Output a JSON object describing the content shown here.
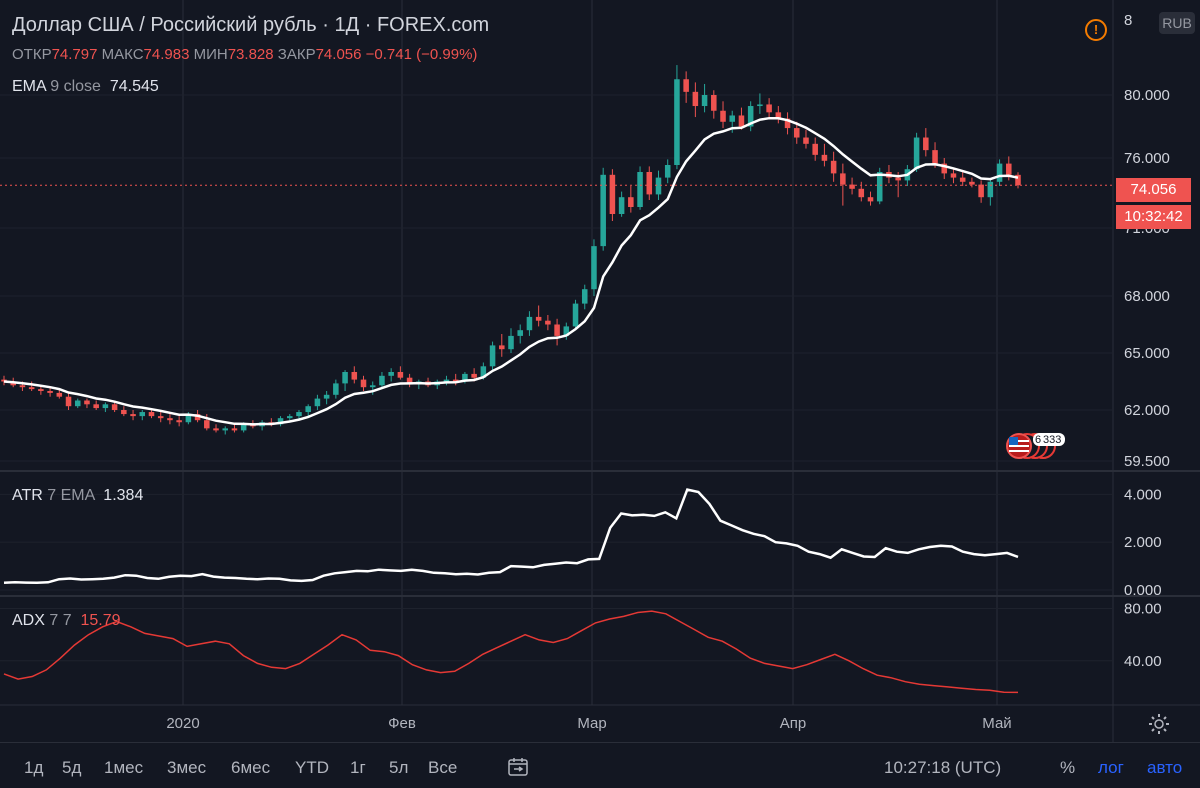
{
  "header": {
    "title": "Доллар США / Российский рубль · 1Д · FOREX.com",
    "ohlc": [
      {
        "key": "ОТКР",
        "value": "74.797"
      },
      {
        "key": "МАКС",
        "value": "74.983"
      },
      {
        "key": "МИН",
        "value": "73.828"
      },
      {
        "key": "ЗАКР",
        "value": "74.056"
      },
      {
        "key": "",
        "value": "−0.741 (−0.99%)"
      }
    ],
    "currency_button": "RUB",
    "alert_icon": "!"
  },
  "indicators": {
    "ema": {
      "name": "EMA",
      "params": "9 close",
      "value": "74.545"
    },
    "atr": {
      "name": "ATR",
      "params": "7 EMA",
      "value": "1.384"
    },
    "adx": {
      "name": "ADX",
      "params": "7 7",
      "value": "15.79"
    }
  },
  "price_axis": {
    "labels": [
      "80.000",
      "76.000",
      "71.000",
      "68.000",
      "65.000",
      "62.000",
      "59.500",
      "8"
    ],
    "current_price": "74.056",
    "countdown": "10:32:42"
  },
  "atr_axis": {
    "labels": [
      "4.000",
      "2.000",
      "0.000"
    ]
  },
  "adx_axis": {
    "labels": [
      "80.00",
      "40.00"
    ]
  },
  "time_axis": {
    "labels": [
      "2020",
      "Фев",
      "Мар",
      "Апр",
      "Май"
    ]
  },
  "events_badge": {
    "label": "6",
    "icon": "us-flag-icon",
    "extra": "333"
  },
  "bottom_bar": {
    "timeframes": [
      "1д",
      "5д",
      "1мес",
      "3мес",
      "6мес",
      "YTD",
      "1г",
      "5л",
      "Все"
    ],
    "clock": "10:27:18 (UTC)",
    "percent": "%",
    "log": "лог",
    "auto": "авто"
  },
  "colors": {
    "background": "#131722",
    "up": "#26a69a",
    "down": "#ef5350",
    "ema": "#ffffff",
    "atr": "#ffffff",
    "adx": "#e53935",
    "grid": "#2a2e39",
    "accent": "#2962ff"
  },
  "chart_data": [
    {
      "type": "candlestick",
      "title": "Доллар США / Российский рубль · 1Д · FOREX.com",
      "y_axis_labels": [
        80.0,
        76.0,
        71.0,
        68.0,
        65.0,
        62.0,
        59.5
      ],
      "ylim": [
        59.5,
        84.0
      ],
      "x_axis_labels": [
        "2020",
        "Фев",
        "Мар",
        "Апр",
        "Май"
      ],
      "candles": [
        {
          "o": 63.6,
          "h": 63.8,
          "l": 63.3,
          "c": 63.5
        },
        {
          "o": 63.5,
          "h": 63.7,
          "l": 63.2,
          "c": 63.3
        },
        {
          "o": 63.3,
          "h": 63.5,
          "l": 63.0,
          "c": 63.2
        },
        {
          "o": 63.2,
          "h": 63.5,
          "l": 63.0,
          "c": 63.1
        },
        {
          "o": 63.1,
          "h": 63.3,
          "l": 62.8,
          "c": 63.0
        },
        {
          "o": 63.0,
          "h": 63.2,
          "l": 62.7,
          "c": 62.9
        },
        {
          "o": 62.9,
          "h": 63.1,
          "l": 62.6,
          "c": 62.7
        },
        {
          "o": 62.7,
          "h": 62.9,
          "l": 62.0,
          "c": 62.2
        },
        {
          "o": 62.2,
          "h": 62.6,
          "l": 62.1,
          "c": 62.5
        },
        {
          "o": 62.5,
          "h": 62.6,
          "l": 62.1,
          "c": 62.3
        },
        {
          "o": 62.3,
          "h": 62.5,
          "l": 62.0,
          "c": 62.1
        },
        {
          "o": 62.1,
          "h": 62.4,
          "l": 61.9,
          "c": 62.3
        },
        {
          "o": 62.3,
          "h": 62.5,
          "l": 61.9,
          "c": 62.0
        },
        {
          "o": 62.0,
          "h": 62.2,
          "l": 61.7,
          "c": 61.8
        },
        {
          "o": 61.8,
          "h": 62.0,
          "l": 61.5,
          "c": 61.7
        },
        {
          "o": 61.7,
          "h": 62.0,
          "l": 61.5,
          "c": 61.9
        },
        {
          "o": 61.9,
          "h": 62.1,
          "l": 61.6,
          "c": 61.7
        },
        {
          "o": 61.7,
          "h": 61.9,
          "l": 61.4,
          "c": 61.6
        },
        {
          "o": 61.6,
          "h": 61.8,
          "l": 61.3,
          "c": 61.5
        },
        {
          "o": 61.5,
          "h": 61.7,
          "l": 61.2,
          "c": 61.4
        },
        {
          "o": 61.4,
          "h": 61.9,
          "l": 61.3,
          "c": 61.8
        },
        {
          "o": 61.8,
          "h": 62.0,
          "l": 61.4,
          "c": 61.5
        },
        {
          "o": 61.5,
          "h": 61.8,
          "l": 61.0,
          "c": 61.1
        },
        {
          "o": 61.1,
          "h": 61.3,
          "l": 60.9,
          "c": 61.0
        },
        {
          "o": 61.0,
          "h": 61.2,
          "l": 60.8,
          "c": 61.1
        },
        {
          "o": 61.1,
          "h": 61.3,
          "l": 60.9,
          "c": 61.0
        },
        {
          "o": 61.0,
          "h": 61.4,
          "l": 60.9,
          "c": 61.3
        },
        {
          "o": 61.3,
          "h": 61.5,
          "l": 61.1,
          "c": 61.2
        },
        {
          "o": 61.2,
          "h": 61.5,
          "l": 61.0,
          "c": 61.4
        },
        {
          "o": 61.4,
          "h": 61.6,
          "l": 61.2,
          "c": 61.3
        },
        {
          "o": 61.3,
          "h": 61.7,
          "l": 61.2,
          "c": 61.6
        },
        {
          "o": 61.6,
          "h": 61.8,
          "l": 61.4,
          "c": 61.7
        },
        {
          "o": 61.7,
          "h": 62.0,
          "l": 61.5,
          "c": 61.9
        },
        {
          "o": 61.9,
          "h": 62.3,
          "l": 61.7,
          "c": 62.2
        },
        {
          "o": 62.2,
          "h": 62.8,
          "l": 62.0,
          "c": 62.6
        },
        {
          "o": 62.6,
          "h": 63.0,
          "l": 62.3,
          "c": 62.8
        },
        {
          "o": 62.8,
          "h": 63.6,
          "l": 62.6,
          "c": 63.4
        },
        {
          "o": 63.4,
          "h": 64.1,
          "l": 63.0,
          "c": 64.0
        },
        {
          "o": 64.0,
          "h": 64.3,
          "l": 63.4,
          "c": 63.6
        },
        {
          "o": 63.6,
          "h": 63.8,
          "l": 63.0,
          "c": 63.2
        },
        {
          "o": 63.2,
          "h": 63.5,
          "l": 62.8,
          "c": 63.3
        },
        {
          "o": 63.3,
          "h": 64.0,
          "l": 63.1,
          "c": 63.8
        },
        {
          "o": 63.8,
          "h": 64.2,
          "l": 63.5,
          "c": 64.0
        },
        {
          "o": 64.0,
          "h": 64.3,
          "l": 63.6,
          "c": 63.7
        },
        {
          "o": 63.7,
          "h": 63.9,
          "l": 63.2,
          "c": 63.4
        },
        {
          "o": 63.4,
          "h": 63.6,
          "l": 63.1,
          "c": 63.5
        },
        {
          "o": 63.5,
          "h": 63.7,
          "l": 63.2,
          "c": 63.3
        },
        {
          "o": 63.3,
          "h": 63.6,
          "l": 63.1,
          "c": 63.5
        },
        {
          "o": 63.5,
          "h": 63.8,
          "l": 63.3,
          "c": 63.6
        },
        {
          "o": 63.6,
          "h": 63.9,
          "l": 63.3,
          "c": 63.5
        },
        {
          "o": 63.5,
          "h": 64.0,
          "l": 63.4,
          "c": 63.9
        },
        {
          "o": 63.9,
          "h": 64.2,
          "l": 63.5,
          "c": 63.7
        },
        {
          "o": 63.7,
          "h": 64.5,
          "l": 63.6,
          "c": 64.3
        },
        {
          "o": 64.3,
          "h": 65.6,
          "l": 64.1,
          "c": 65.4
        },
        {
          "o": 65.4,
          "h": 66.0,
          "l": 64.8,
          "c": 65.2
        },
        {
          "o": 65.2,
          "h": 66.3,
          "l": 65.0,
          "c": 65.9
        },
        {
          "o": 65.9,
          "h": 66.5,
          "l": 65.5,
          "c": 66.2
        },
        {
          "o": 66.2,
          "h": 67.2,
          "l": 65.9,
          "c": 66.9
        },
        {
          "o": 66.9,
          "h": 67.5,
          "l": 66.4,
          "c": 66.7
        },
        {
          "o": 66.7,
          "h": 67.0,
          "l": 66.2,
          "c": 66.5
        },
        {
          "o": 66.5,
          "h": 66.8,
          "l": 65.4,
          "c": 65.9
        },
        {
          "o": 65.9,
          "h": 66.6,
          "l": 65.7,
          "c": 66.4
        },
        {
          "o": 66.4,
          "h": 67.8,
          "l": 66.2,
          "c": 67.6
        },
        {
          "o": 67.6,
          "h": 68.5,
          "l": 67.3,
          "c": 68.3
        },
        {
          "o": 68.3,
          "h": 70.5,
          "l": 68.0,
          "c": 70.2
        },
        {
          "o": 70.2,
          "h": 75.3,
          "l": 70.0,
          "c": 74.8
        },
        {
          "o": 74.8,
          "h": 75.2,
          "l": 71.5,
          "c": 72.0
        },
        {
          "o": 72.0,
          "h": 73.6,
          "l": 71.8,
          "c": 73.2
        },
        {
          "o": 73.2,
          "h": 74.0,
          "l": 72.1,
          "c": 72.5
        },
        {
          "o": 72.5,
          "h": 75.4,
          "l": 72.3,
          "c": 75.0
        },
        {
          "o": 75.0,
          "h": 75.4,
          "l": 73.0,
          "c": 73.4
        },
        {
          "o": 73.4,
          "h": 75.1,
          "l": 73.0,
          "c": 74.6
        },
        {
          "o": 74.6,
          "h": 75.9,
          "l": 74.2,
          "c": 75.5
        },
        {
          "o": 75.5,
          "h": 81.9,
          "l": 75.2,
          "c": 81.0
        },
        {
          "o": 81.0,
          "h": 81.5,
          "l": 79.5,
          "c": 80.2
        },
        {
          "o": 80.2,
          "h": 80.8,
          "l": 78.6,
          "c": 79.3
        },
        {
          "o": 79.3,
          "h": 80.7,
          "l": 78.9,
          "c": 80.0
        },
        {
          "o": 80.0,
          "h": 80.3,
          "l": 78.5,
          "c": 79.0
        },
        {
          "o": 79.0,
          "h": 79.6,
          "l": 77.9,
          "c": 78.3
        },
        {
          "o": 78.3,
          "h": 79.0,
          "l": 77.6,
          "c": 78.7
        },
        {
          "o": 78.7,
          "h": 79.2,
          "l": 77.8,
          "c": 78.0
        },
        {
          "o": 78.0,
          "h": 79.6,
          "l": 77.7,
          "c": 79.3
        },
        {
          "o": 79.3,
          "h": 80.1,
          "l": 78.8,
          "c": 79.4
        },
        {
          "o": 79.4,
          "h": 79.8,
          "l": 78.6,
          "c": 78.9
        },
        {
          "o": 78.9,
          "h": 79.3,
          "l": 78.2,
          "c": 78.5
        },
        {
          "o": 78.5,
          "h": 78.9,
          "l": 77.5,
          "c": 77.9
        },
        {
          "o": 77.9,
          "h": 78.3,
          "l": 76.9,
          "c": 77.3
        },
        {
          "o": 77.3,
          "h": 77.8,
          "l": 76.6,
          "c": 76.9
        },
        {
          "o": 76.9,
          "h": 77.3,
          "l": 75.8,
          "c": 76.2
        },
        {
          "o": 76.2,
          "h": 76.9,
          "l": 75.4,
          "c": 75.8
        },
        {
          "o": 75.8,
          "h": 76.4,
          "l": 74.3,
          "c": 74.9
        },
        {
          "o": 74.9,
          "h": 75.6,
          "l": 72.6,
          "c": 74.1
        },
        {
          "o": 74.1,
          "h": 74.6,
          "l": 73.4,
          "c": 73.8
        },
        {
          "o": 73.8,
          "h": 74.3,
          "l": 72.9,
          "c": 73.2
        },
        {
          "o": 73.2,
          "h": 73.6,
          "l": 72.6,
          "c": 72.9
        },
        {
          "o": 72.9,
          "h": 75.3,
          "l": 72.7,
          "c": 75.0
        },
        {
          "o": 75.0,
          "h": 75.5,
          "l": 74.2,
          "c": 74.6
        },
        {
          "o": 74.6,
          "h": 75.0,
          "l": 73.2,
          "c": 74.4
        },
        {
          "o": 74.4,
          "h": 75.5,
          "l": 74.0,
          "c": 75.2
        },
        {
          "o": 75.2,
          "h": 77.6,
          "l": 75.0,
          "c": 77.3
        },
        {
          "o": 77.3,
          "h": 77.9,
          "l": 76.1,
          "c": 76.5
        },
        {
          "o": 76.5,
          "h": 77.0,
          "l": 75.3,
          "c": 75.6
        },
        {
          "o": 75.6,
          "h": 76.0,
          "l": 74.5,
          "c": 74.9
        },
        {
          "o": 74.9,
          "h": 75.3,
          "l": 74.2,
          "c": 74.6
        },
        {
          "o": 74.6,
          "h": 75.1,
          "l": 74.0,
          "c": 74.3
        },
        {
          "o": 74.3,
          "h": 74.6,
          "l": 73.9,
          "c": 74.1
        },
        {
          "o": 74.1,
          "h": 74.4,
          "l": 72.8,
          "c": 73.2
        },
        {
          "o": 73.2,
          "h": 74.5,
          "l": 72.6,
          "c": 74.3
        },
        {
          "o": 74.3,
          "h": 75.9,
          "l": 74.0,
          "c": 75.6
        },
        {
          "o": 75.6,
          "h": 76.1,
          "l": 74.4,
          "c": 74.8
        },
        {
          "o": 74.797,
          "h": 74.983,
          "l": 73.828,
          "c": 74.056
        }
      ],
      "ema": {
        "name": "EMA 9 close",
        "last": 74.545
      },
      "current_price": 74.056
    },
    {
      "type": "line",
      "name": "ATR 7 EMA",
      "ylim": [
        0,
        4.6
      ],
      "y_axis_labels": [
        4.0,
        2.0,
        0.0
      ],
      "values": [
        0.3,
        0.32,
        0.31,
        0.3,
        0.32,
        0.45,
        0.48,
        0.44,
        0.45,
        0.47,
        0.52,
        0.62,
        0.6,
        0.5,
        0.47,
        0.55,
        0.6,
        0.58,
        0.66,
        0.56,
        0.52,
        0.5,
        0.47,
        0.45,
        0.48,
        0.47,
        0.4,
        0.38,
        0.42,
        0.6,
        0.7,
        0.75,
        0.8,
        0.78,
        0.85,
        0.82,
        0.8,
        0.85,
        0.8,
        0.72,
        0.7,
        0.66,
        0.68,
        0.65,
        0.72,
        0.75,
        1.0,
        0.98,
        0.95,
        1.05,
        1.1,
        1.15,
        1.12,
        1.28,
        1.3,
        2.6,
        3.2,
        3.12,
        3.15,
        3.1,
        3.25,
        3.0,
        4.2,
        4.1,
        3.6,
        2.9,
        2.7,
        2.5,
        2.35,
        2.25,
        2.0,
        1.95,
        1.85,
        1.6,
        1.5,
        1.35,
        1.7,
        1.55,
        1.4,
        1.38,
        1.75,
        1.6,
        1.55,
        1.7,
        1.8,
        1.85,
        1.82,
        1.6,
        1.5,
        1.45,
        1.5,
        1.55,
        1.384
      ],
      "last": 1.384
    },
    {
      "type": "line",
      "name": "ADX 7 7",
      "ylim": [
        10,
        85
      ],
      "y_axis_labels": [
        80.0,
        40.0
      ],
      "values": [
        30,
        26,
        28,
        33,
        42,
        52,
        60,
        66,
        70,
        66,
        61,
        59,
        57,
        51,
        53,
        55,
        53,
        44,
        38,
        35,
        34,
        38,
        45,
        52,
        60,
        56,
        48,
        47,
        44,
        37,
        33,
        31,
        32,
        38,
        45,
        50,
        55,
        60,
        56,
        54,
        57,
        63,
        69,
        72,
        74,
        77,
        78,
        76,
        70,
        64,
        58,
        55,
        49,
        42,
        38,
        36,
        34,
        37,
        41,
        45,
        40,
        34,
        29,
        27,
        24,
        22,
        21,
        20,
        19,
        18,
        17.5,
        16,
        15.79
      ],
      "last": 15.79
    }
  ]
}
